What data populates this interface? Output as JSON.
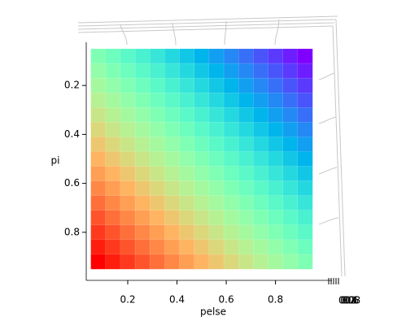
{
  "chart_data": {
    "type": "surface",
    "x_label": "pelse",
    "y_label": "pi",
    "xlim": [
      0.05,
      0.95
    ],
    "ylim": [
      0.05,
      0.95
    ],
    "xticks": [
      0.2,
      0.4,
      0.6,
      0.8
    ],
    "yticks": [
      0.2,
      0.4,
      0.6,
      0.8
    ],
    "zlim": [
      0.08,
      0.92
    ],
    "zticks": [
      {
        "value": 0.0,
        "label": "0.0"
      },
      {
        "value": 0.2,
        "label": "0.2"
      },
      {
        "value": 0.4,
        "label": "0.4"
      },
      {
        "value": 0.6,
        "label": "0.6"
      },
      {
        "value": 0.8,
        "label": "0.8"
      }
    ],
    "colormap": "rainbow",
    "z": [
      [
        0.5,
        0.47,
        0.44,
        0.41,
        0.38,
        0.35,
        0.32,
        0.29,
        0.26,
        0.23,
        0.2,
        0.17,
        0.14,
        0.11,
        0.08
      ],
      [
        0.53,
        0.5,
        0.47,
        0.44,
        0.41,
        0.38,
        0.35,
        0.32,
        0.29,
        0.26,
        0.23,
        0.2,
        0.17,
        0.14,
        0.11
      ],
      [
        0.56,
        0.53,
        0.5,
        0.47,
        0.44,
        0.41,
        0.38,
        0.35,
        0.32,
        0.29,
        0.26,
        0.23,
        0.2,
        0.17,
        0.14
      ],
      [
        0.59,
        0.56,
        0.53,
        0.5,
        0.47,
        0.44,
        0.41,
        0.38,
        0.35,
        0.32,
        0.29,
        0.26,
        0.23,
        0.2,
        0.17
      ],
      [
        0.62,
        0.59,
        0.56,
        0.53,
        0.5,
        0.47,
        0.44,
        0.41,
        0.38,
        0.35,
        0.32,
        0.29,
        0.26,
        0.23,
        0.2
      ],
      [
        0.65,
        0.62,
        0.59,
        0.56,
        0.53,
        0.5,
        0.47,
        0.44,
        0.41,
        0.38,
        0.35,
        0.32,
        0.29,
        0.26,
        0.23
      ],
      [
        0.68,
        0.65,
        0.62,
        0.59,
        0.56,
        0.53,
        0.5,
        0.47,
        0.44,
        0.41,
        0.38,
        0.35,
        0.32,
        0.29,
        0.26
      ],
      [
        0.71,
        0.68,
        0.65,
        0.62,
        0.59,
        0.56,
        0.53,
        0.5,
        0.47,
        0.44,
        0.41,
        0.38,
        0.35,
        0.32,
        0.29
      ],
      [
        0.74,
        0.71,
        0.68,
        0.65,
        0.62,
        0.59,
        0.56,
        0.53,
        0.5,
        0.47,
        0.44,
        0.41,
        0.38,
        0.35,
        0.32
      ],
      [
        0.77,
        0.74,
        0.71,
        0.68,
        0.65,
        0.62,
        0.59,
        0.56,
        0.53,
        0.5,
        0.47,
        0.44,
        0.41,
        0.38,
        0.35
      ],
      [
        0.8,
        0.77,
        0.74,
        0.71,
        0.68,
        0.65,
        0.62,
        0.59,
        0.56,
        0.53,
        0.5,
        0.47,
        0.44,
        0.41,
        0.38
      ],
      [
        0.83,
        0.8,
        0.77,
        0.74,
        0.71,
        0.68,
        0.65,
        0.62,
        0.59,
        0.56,
        0.53,
        0.5,
        0.47,
        0.44,
        0.41
      ],
      [
        0.86,
        0.83,
        0.8,
        0.77,
        0.74,
        0.71,
        0.68,
        0.65,
        0.62,
        0.59,
        0.56,
        0.53,
        0.5,
        0.47,
        0.44
      ],
      [
        0.89,
        0.86,
        0.83,
        0.8,
        0.77,
        0.74,
        0.71,
        0.68,
        0.65,
        0.62,
        0.59,
        0.56,
        0.53,
        0.5,
        0.47
      ],
      [
        0.92,
        0.89,
        0.86,
        0.83,
        0.8,
        0.77,
        0.74,
        0.71,
        0.68,
        0.65,
        0.62,
        0.59,
        0.56,
        0.53,
        0.5
      ]
    ]
  }
}
